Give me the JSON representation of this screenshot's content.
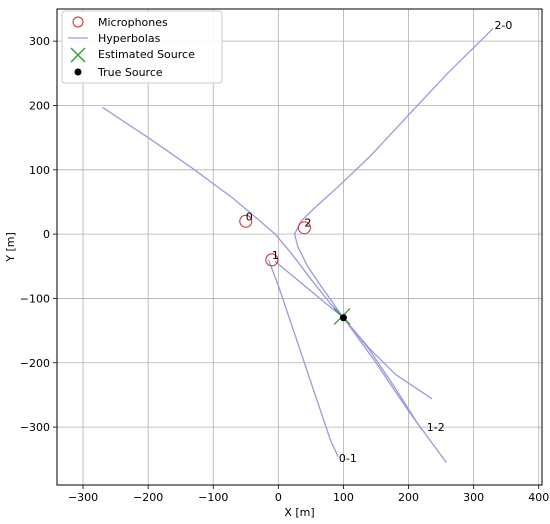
{
  "chart_data": {
    "type": "scatter",
    "title": "",
    "xlabel": "X [m]",
    "ylabel": "Y [m]",
    "xlim": [
      -340,
      405
    ],
    "ylim": [
      -390,
      350
    ],
    "xticks": [
      -300,
      -200,
      -100,
      0,
      100,
      200,
      300,
      400
    ],
    "yticks": [
      -300,
      -200,
      -100,
      0,
      100,
      200,
      300
    ],
    "grid": true,
    "legend": {
      "placement": "top-left",
      "entries": [
        {
          "label": "Microphones",
          "marker": "open-circle",
          "color": "#d62728"
        },
        {
          "label": "Hyperbolas",
          "marker": "line",
          "color": "#9999ee"
        },
        {
          "label": "Estimated Source",
          "marker": "x",
          "color": "#2ca02c"
        },
        {
          "label": "True Source",
          "marker": "dot",
          "color": "#000000"
        }
      ]
    },
    "microphones": [
      {
        "label": "0",
        "x": -50,
        "y": 20
      },
      {
        "label": "1",
        "x": -10,
        "y": -40
      },
      {
        "label": "2",
        "x": 40,
        "y": 10
      }
    ],
    "estimated_source": {
      "x": 98,
      "y": -128
    },
    "true_source": {
      "x": 100,
      "y": -130
    },
    "hyperbolas": [
      {
        "label": "0-1",
        "branches": [
          [
            [
              -270,
              197
            ],
            [
              -200,
              150
            ],
            [
              -130,
              101
            ],
            [
              -70,
              56
            ],
            [
              -30,
              22
            ],
            [
              -5,
              0
            ],
            [
              20,
              -30
            ],
            [
              50,
              -70
            ],
            [
              80,
              -108
            ],
            [
              100,
              -130
            ],
            [
              140,
              -178
            ],
            [
              180,
              -218
            ],
            [
              236,
              -256
            ]
          ],
          [
            [
              -15,
              -40
            ],
            [
              0,
              -80
            ],
            [
              20,
              -140
            ],
            [
              40,
              -200
            ],
            [
              60,
              -260
            ],
            [
              80,
              -320
            ],
            [
              92,
              -346
            ]
          ]
        ],
        "label_at": [
          93,
          -348
        ]
      },
      {
        "label": "1-2",
        "branches": [
          [
            [
              -5,
              -42
            ],
            [
              10,
              -55
            ],
            [
              40,
              -80
            ],
            [
              70,
              -105
            ],
            [
              100,
              -130
            ],
            [
              140,
              -180
            ],
            [
              180,
              -240
            ],
            [
              220,
              -304
            ]
          ]
        ],
        "label_at": [
          228,
          -300
        ]
      },
      {
        "label": "2-0",
        "branches": [
          [
            [
              330,
              320
            ],
            [
              260,
              250
            ],
            [
              200,
              185
            ],
            [
              140,
              120
            ],
            [
              90,
              72
            ],
            [
              55,
              40
            ],
            [
              35,
              20
            ],
            [
              25,
              0
            ],
            [
              30,
              -20
            ],
            [
              45,
              -50
            ],
            [
              65,
              -80
            ],
            [
              100,
              -130
            ],
            [
              150,
              -200
            ],
            [
              200,
              -275
            ],
            [
              258,
              -355
            ]
          ]
        ],
        "label_at": [
          332,
          325
        ]
      }
    ]
  }
}
